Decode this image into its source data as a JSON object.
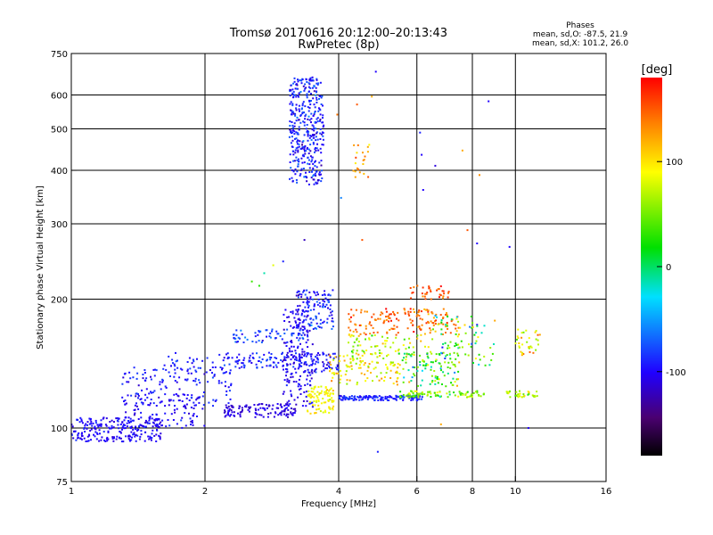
{
  "figure": {
    "title_line1": "Tromsø 20170616 20:12:00–20:13:43",
    "title_line2": "RwPretec (8p)",
    "phase_heading": "Phases",
    "phase_o": "mean, sd,O: -87.5, 21.9",
    "phase_x": "mean, sd,X: 101.2, 26.0",
    "colorbar_unit": "[deg]"
  },
  "chart_data": {
    "type": "scatter",
    "xlabel": "Frequency [MHz]",
    "ylabel": "Stationary phase Virtual Height [km]",
    "xscale": "log",
    "yscale": "log",
    "xlim": [
      1,
      16
    ],
    "ylim": [
      75,
      750
    ],
    "xticks": [
      1,
      2,
      4,
      6,
      8,
      10,
      16
    ],
    "xtick_labels": [
      "1",
      "2",
      "4",
      "6",
      "8",
      "10",
      "16"
    ],
    "xgrid": [
      2,
      4,
      6,
      8,
      10
    ],
    "yticks": [
      75,
      100,
      200,
      300,
      400,
      500,
      600,
      750
    ],
    "ytick_labels": [
      "75",
      "100",
      "200",
      "300",
      "400",
      "500",
      "600",
      "750"
    ],
    "ygrid": [
      100,
      200,
      300,
      400,
      500,
      600
    ],
    "grid": true,
    "colorbar": {
      "min": -180,
      "max": 180,
      "ticks": [
        100,
        0,
        -100
      ],
      "tick_labels": [
        "100",
        "0",
        "-100"
      ]
    },
    "seed": 20170616,
    "clusters": [
      {
        "fmin": 1.0,
        "fmax": 1.6,
        "hmin": 93,
        "hmax": 106,
        "n": 220,
        "phase": -100,
        "sd": 12
      },
      {
        "fmin": 1.3,
        "fmax": 2.0,
        "hmin": 100,
        "hmax": 120,
        "n": 120,
        "phase": -100,
        "sd": 15
      },
      {
        "fmin": 1.3,
        "fmax": 2.3,
        "hmin": 112,
        "hmax": 140,
        "n": 110,
        "phase": -95,
        "sd": 18
      },
      {
        "fmin": 1.6,
        "fmax": 2.3,
        "hmin": 128,
        "hmax": 150,
        "n": 50,
        "phase": -90,
        "sd": 15
      },
      {
        "fmin": 2.2,
        "fmax": 3.2,
        "hmin": 106,
        "hmax": 114,
        "n": 120,
        "phase": -110,
        "sd": 12
      },
      {
        "fmin": 2.2,
        "fmax": 3.4,
        "hmin": 138,
        "hmax": 150,
        "n": 90,
        "phase": -90,
        "sd": 20
      },
      {
        "fmin": 2.3,
        "fmax": 3.4,
        "hmin": 158,
        "hmax": 170,
        "n": 60,
        "phase": -75,
        "sd": 25
      },
      {
        "fmin": 3.0,
        "fmax": 3.5,
        "hmin": 110,
        "hmax": 190,
        "n": 180,
        "phase": -105,
        "sd": 15
      },
      {
        "fmin": 3.2,
        "fmax": 3.9,
        "hmin": 170,
        "hmax": 210,
        "n": 120,
        "phase": -90,
        "sd": 25
      },
      {
        "fmin": 3.1,
        "fmax": 3.7,
        "hmin": 370,
        "hmax": 660,
        "n": 380,
        "phase": -90,
        "sd": 25
      },
      {
        "fmin": 3.4,
        "fmax": 3.9,
        "hmin": 108,
        "hmax": 125,
        "n": 90,
        "phase": 90,
        "sd": 20
      },
      {
        "fmin": 3.2,
        "fmax": 4.0,
        "hmin": 135,
        "hmax": 150,
        "n": 70,
        "phase": -95,
        "sd": 20
      },
      {
        "fmin": 3.8,
        "fmax": 5.5,
        "hmin": 126,
        "hmax": 150,
        "n": 100,
        "phase": 100,
        "sd": 40
      },
      {
        "fmin": 4.0,
        "fmax": 6.2,
        "hmin": 116,
        "hmax": 119,
        "n": 150,
        "phase": -90,
        "sd": 15
      },
      {
        "fmin": 4.2,
        "fmax": 7.5,
        "hmin": 165,
        "hmax": 190,
        "n": 160,
        "phase": 140,
        "sd": 30
      },
      {
        "fmin": 4.2,
        "fmax": 6.5,
        "hmin": 140,
        "hmax": 165,
        "n": 90,
        "phase": 60,
        "sd": 50
      },
      {
        "fmin": 5.5,
        "fmax": 8.5,
        "hmin": 118,
        "hmax": 122,
        "n": 90,
        "phase": 40,
        "sd": 60
      },
      {
        "fmin": 5.5,
        "fmax": 7.5,
        "hmin": 125,
        "hmax": 150,
        "n": 90,
        "phase": 10,
        "sd": 70
      },
      {
        "fmin": 6.5,
        "fmax": 9.0,
        "hmin": 140,
        "hmax": 185,
        "n": 80,
        "phase": 20,
        "sd": 80
      },
      {
        "fmin": 5.8,
        "fmax": 7.2,
        "hmin": 200,
        "hmax": 215,
        "n": 35,
        "phase": 150,
        "sd": 20
      },
      {
        "fmin": 9.5,
        "fmax": 11.2,
        "hmin": 118,
        "hmax": 122,
        "n": 35,
        "phase": 60,
        "sd": 40
      },
      {
        "fmin": 10.0,
        "fmax": 11.5,
        "hmin": 148,
        "hmax": 170,
        "n": 35,
        "phase": 90,
        "sd": 50
      },
      {
        "fmin": 4.3,
        "fmax": 4.7,
        "hmin": 385,
        "hmax": 460,
        "n": 22,
        "phase": 120,
        "sd": 25
      }
    ],
    "points": [
      [
        2.55,
        220,
        20
      ],
      [
        2.65,
        215,
        10
      ],
      [
        2.72,
        230,
        -20
      ],
      [
        2.85,
        240,
        80
      ],
      [
        3.0,
        245,
        -90
      ],
      [
        3.35,
        275,
        -120
      ],
      [
        4.05,
        345,
        -60
      ],
      [
        4.52,
        275,
        150
      ],
      [
        4.75,
        595,
        120
      ],
      [
        4.85,
        680,
        -100
      ],
      [
        4.4,
        570,
        150
      ],
      [
        3.97,
        540,
        140
      ],
      [
        6.1,
        490,
        -90
      ],
      [
        6.15,
        435,
        -100
      ],
      [
        6.6,
        410,
        -110
      ],
      [
        6.2,
        360,
        -100
      ],
      [
        8.3,
        390,
        130
      ],
      [
        8.7,
        580,
        -100
      ],
      [
        9.7,
        265,
        -100
      ],
      [
        7.8,
        290,
        150
      ],
      [
        8.2,
        270,
        -100
      ],
      [
        7.6,
        445,
        120
      ],
      [
        4.9,
        88,
        -90
      ],
      [
        10.7,
        100,
        -100
      ],
      [
        6.8,
        102,
        120
      ]
    ]
  }
}
